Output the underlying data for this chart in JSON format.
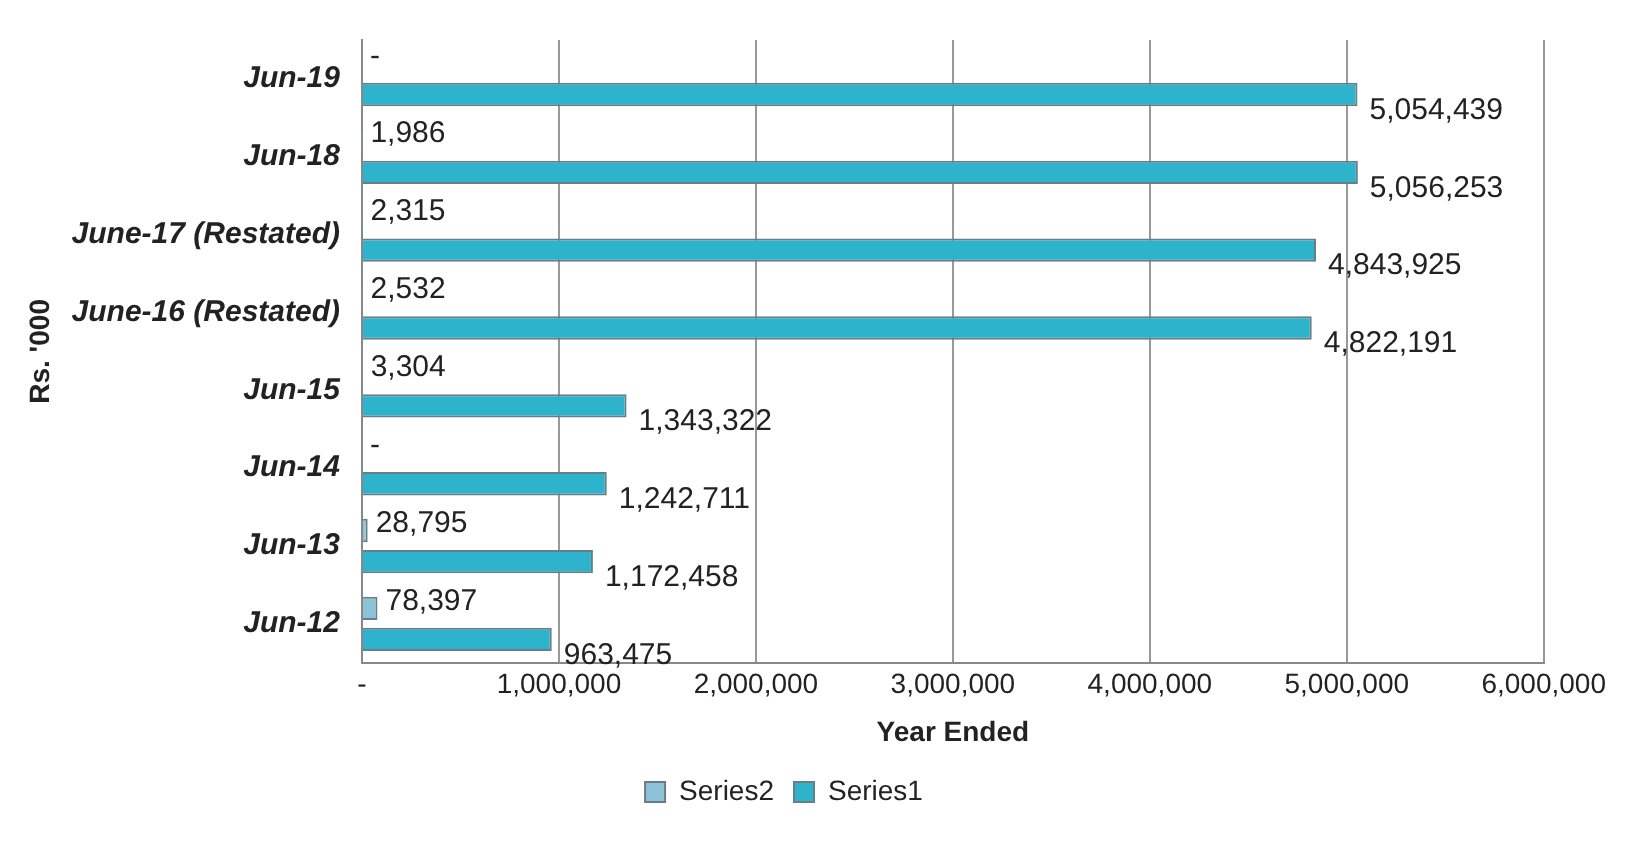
{
  "chart_data": {
    "type": "bar",
    "orientation": "horizontal",
    "xlabel": "Year Ended",
    "ylabel": "Rs. '000",
    "categories": [
      "Jun-19",
      "Jun-18",
      "June-17 (Restated)",
      "June-16 (Restated)",
      "Jun-15",
      "Jun-14",
      "Jun-13",
      "Jun-12"
    ],
    "series": [
      {
        "name": "Series2",
        "color": "#8cc3d6",
        "values": [
          0,
          1986,
          2315,
          2532,
          3304,
          0,
          28795,
          78397
        ],
        "value_labels": [
          "-",
          "1,986",
          "2,315",
          "2,532",
          "3,304",
          "-",
          "28,795",
          "78,397"
        ]
      },
      {
        "name": "Series1",
        "color": "#2eb3cc",
        "values": [
          5054439,
          5056253,
          4843925,
          4822191,
          1343322,
          1242711,
          1172458,
          963475
        ],
        "value_labels": [
          "5,054,439",
          "5,056,253",
          "4,843,925",
          "4,822,191",
          "1,343,322",
          "1,242,711",
          "1,172,458",
          "963,475"
        ]
      }
    ],
    "xlim": [
      0,
      6000000
    ],
    "xticks": [
      {
        "value": 0,
        "label": "-"
      },
      {
        "value": 1000000,
        "label": "1,000,000"
      },
      {
        "value": 2000000,
        "label": "2,000,000"
      },
      {
        "value": 3000000,
        "label": "3,000,000"
      },
      {
        "value": 4000000,
        "label": "4,000,000"
      },
      {
        "value": 5000000,
        "label": "5,000,000"
      },
      {
        "value": 6000000,
        "label": "6,000,000"
      }
    ],
    "grid": "x",
    "legend": "bottom"
  }
}
